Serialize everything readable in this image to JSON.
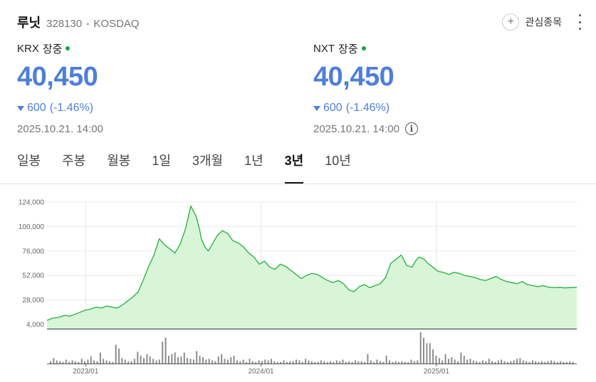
{
  "header": {
    "name": "루닛",
    "code": "328130",
    "separator": "•",
    "market": "KOSDAQ"
  },
  "watch": {
    "label": "관심종목",
    "icon": "plus-icon"
  },
  "menu": {
    "icon": "more-vertical-icon"
  },
  "quotes": {
    "krx": {
      "venue": "KRX",
      "status": "장중",
      "price": "40,450",
      "change": "600",
      "change_pct": "(-1.46%)",
      "direction": "down",
      "datetime": "2025.10.21. 14:00"
    },
    "nxt": {
      "venue": "NXT",
      "status": "장중",
      "price": "40,450",
      "change": "600",
      "change_pct": "(-1.46%)",
      "direction": "down",
      "datetime": "2025.10.21. 14:00",
      "info_icon": "i"
    }
  },
  "colors": {
    "price": "#4f7fd8",
    "live": "#16a34a",
    "line": "#22b03a",
    "fill": "#d8f5d8",
    "volume": "#8c8c8c"
  },
  "tabs": [
    {
      "label": "일봉",
      "active": false
    },
    {
      "label": "주봉",
      "active": false
    },
    {
      "label": "월봉",
      "active": false
    },
    {
      "label": "1일",
      "active": false
    },
    {
      "label": "3개월",
      "active": false
    },
    {
      "label": "1년",
      "active": false
    },
    {
      "label": "3년",
      "active": true
    },
    {
      "label": "10년",
      "active": false
    }
  ],
  "chart_data": {
    "type": "area",
    "title": "",
    "xlabel": "",
    "ylabel": "",
    "ylim": [
      4000,
      124000
    ],
    "y_ticks": [
      "124,000",
      "100,000",
      "76,000",
      "52,000",
      "28,000",
      "4,000"
    ],
    "y_tick_values": [
      124000,
      100000,
      76000,
      52000,
      28000,
      4000
    ],
    "x_ticks": [
      "2023/01",
      "2024/01",
      "2025/01"
    ],
    "x_tick_values": [
      2023.0,
      2024.0,
      2025.0
    ],
    "grid": true,
    "legend": "none",
    "series": [
      {
        "x": [
          2022.78,
          2022.81,
          2022.85,
          2022.88,
          2022.91,
          2022.94,
          2022.97,
          2023.0,
          2023.03,
          2023.06,
          2023.09,
          2023.12,
          2023.15,
          2023.18,
          2023.21,
          2023.24,
          2023.27,
          2023.3,
          2023.33,
          2023.36,
          2023.39,
          2023.42,
          2023.45,
          2023.48,
          2023.51,
          2023.54,
          2023.57,
          2023.6,
          2023.63,
          2023.65,
          2023.66,
          2023.68,
          2023.7,
          2023.72,
          2023.75,
          2023.78,
          2023.81,
          2023.84,
          2023.87,
          2023.9,
          2023.93,
          2023.96,
          2023.99,
          2024.02,
          2024.05,
          2024.08,
          2024.11,
          2024.14,
          2024.17,
          2024.2,
          2024.23,
          2024.26,
          2024.29,
          2024.32,
          2024.35,
          2024.38,
          2024.41,
          2024.44,
          2024.47,
          2024.5,
          2024.53,
          2024.56,
          2024.59,
          2024.62,
          2024.65,
          2024.68,
          2024.71,
          2024.74,
          2024.77,
          2024.8,
          2024.83,
          2024.86,
          2024.88,
          2024.9,
          2024.93,
          2024.95,
          2024.98,
          2025.01,
          2025.04,
          2025.07,
          2025.1,
          2025.13,
          2025.16,
          2025.19,
          2025.22,
          2025.25,
          2025.28,
          2025.31,
          2025.34,
          2025.37,
          2025.4,
          2025.43,
          2025.46,
          2025.49,
          2025.52,
          2025.55,
          2025.58,
          2025.61,
          2025.64,
          2025.67,
          2025.7,
          2025.73,
          2025.76,
          2025.8
        ],
        "y": [
          8000,
          10000,
          11000,
          13000,
          12000,
          14000,
          16000,
          18000,
          19000,
          21000,
          20000,
          22000,
          21000,
          20000,
          23000,
          27000,
          31000,
          36000,
          48000,
          61000,
          72000,
          88000,
          82000,
          78000,
          74000,
          83000,
          98000,
          120000,
          110000,
          97000,
          88000,
          80000,
          76000,
          82000,
          91000,
          96000,
          93000,
          86000,
          84000,
          80000,
          74000,
          70000,
          63000,
          66000,
          60000,
          58000,
          63000,
          61000,
          57000,
          53000,
          49000,
          52000,
          54000,
          53000,
          50000,
          47000,
          45000,
          47000,
          44000,
          38000,
          36000,
          41000,
          43000,
          40000,
          42000,
          44000,
          50000,
          64000,
          68000,
          72000,
          62000,
          60000,
          66000,
          70000,
          68000,
          64000,
          60000,
          56000,
          55000,
          53000,
          55000,
          54000,
          52000,
          51000,
          50000,
          48000,
          47000,
          49000,
          51000,
          48000,
          46000,
          45000,
          44000,
          46000,
          43000,
          42000,
          41000,
          42000,
          40500,
          40000,
          40450,
          39800,
          40100,
          40450
        ]
      }
    ],
    "volume": [
      3,
      7,
      4,
      3,
      2,
      5,
      2,
      4,
      3,
      2,
      6,
      3,
      5,
      9,
      4,
      3,
      14,
      6,
      4,
      3,
      2,
      24,
      19,
      7,
      5,
      3,
      3,
      6,
      15,
      10,
      7,
      12,
      9,
      6,
      4,
      5,
      28,
      33,
      10,
      12,
      14,
      8,
      9,
      14,
      7,
      6,
      5,
      16,
      10,
      8,
      5,
      6,
      4,
      3,
      9,
      12,
      6,
      5,
      8,
      10,
      4,
      3,
      5,
      2,
      6,
      3,
      2,
      4,
      3,
      5,
      4,
      6,
      3,
      2,
      2,
      4,
      2,
      3,
      3,
      5,
      4,
      2,
      6,
      4,
      3,
      2,
      2,
      4,
      3,
      2,
      3,
      2,
      4,
      3,
      5,
      2,
      3,
      2,
      4,
      3,
      3,
      2,
      12,
      4,
      2,
      5,
      3,
      2,
      10,
      4,
      2,
      3,
      2,
      3,
      2,
      2,
      5,
      3,
      4,
      40,
      33,
      26,
      26,
      18,
      10,
      7,
      4,
      12,
      6,
      8,
      5,
      3,
      14,
      10,
      5,
      6,
      4,
      3,
      2,
      4,
      3,
      6,
      3,
      2,
      4,
      5,
      3,
      2,
      3,
      4,
      6,
      7,
      4,
      3,
      2,
      4,
      3,
      2,
      3,
      2,
      3,
      4,
      3,
      2,
      3,
      2,
      2,
      3,
      2
    ]
  }
}
